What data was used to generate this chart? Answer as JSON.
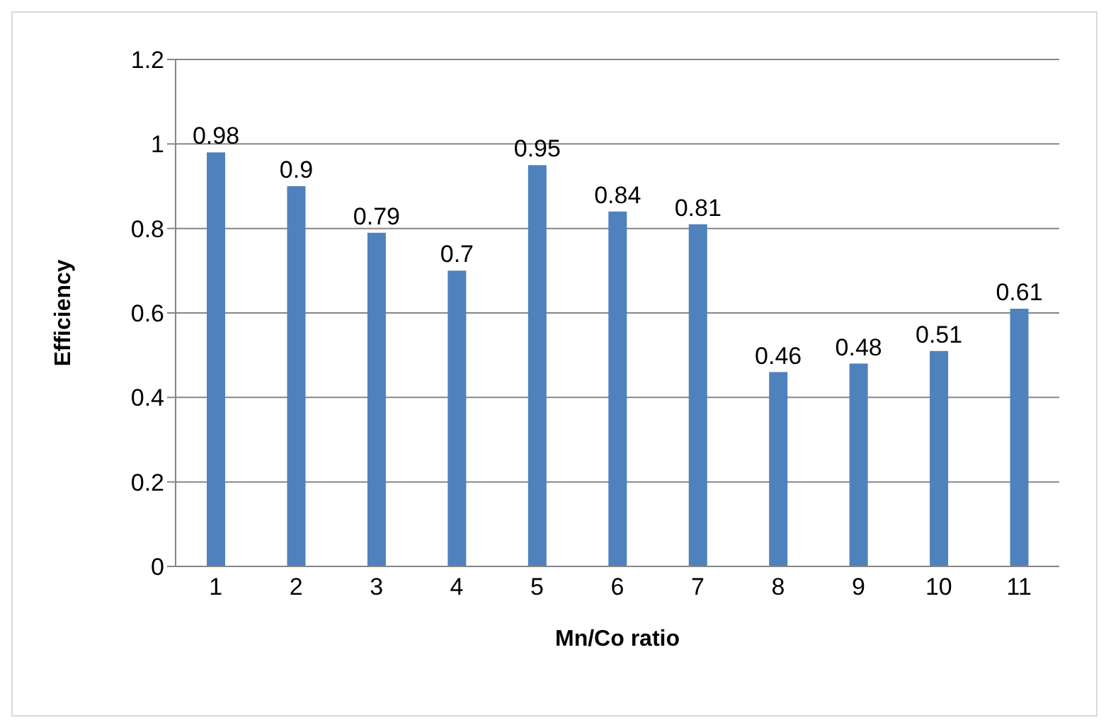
{
  "chart_data": {
    "type": "bar",
    "xlabel": "Mn/Co ratio",
    "ylabel": "Efficiency",
    "categories": [
      "1",
      "2",
      "3",
      "4",
      "5",
      "6",
      "7",
      "8",
      "9",
      "10",
      "11"
    ],
    "values": [
      0.98,
      0.9,
      0.79,
      0.7,
      0.95,
      0.84,
      0.81,
      0.46,
      0.48,
      0.51,
      0.61
    ],
    "color": "#4f81bd",
    "ylim": [
      0,
      1.2
    ],
    "yticks": [
      0,
      0.2,
      0.4,
      0.6,
      0.8,
      1,
      1.2
    ],
    "grid": "y",
    "data_labels": true
  }
}
